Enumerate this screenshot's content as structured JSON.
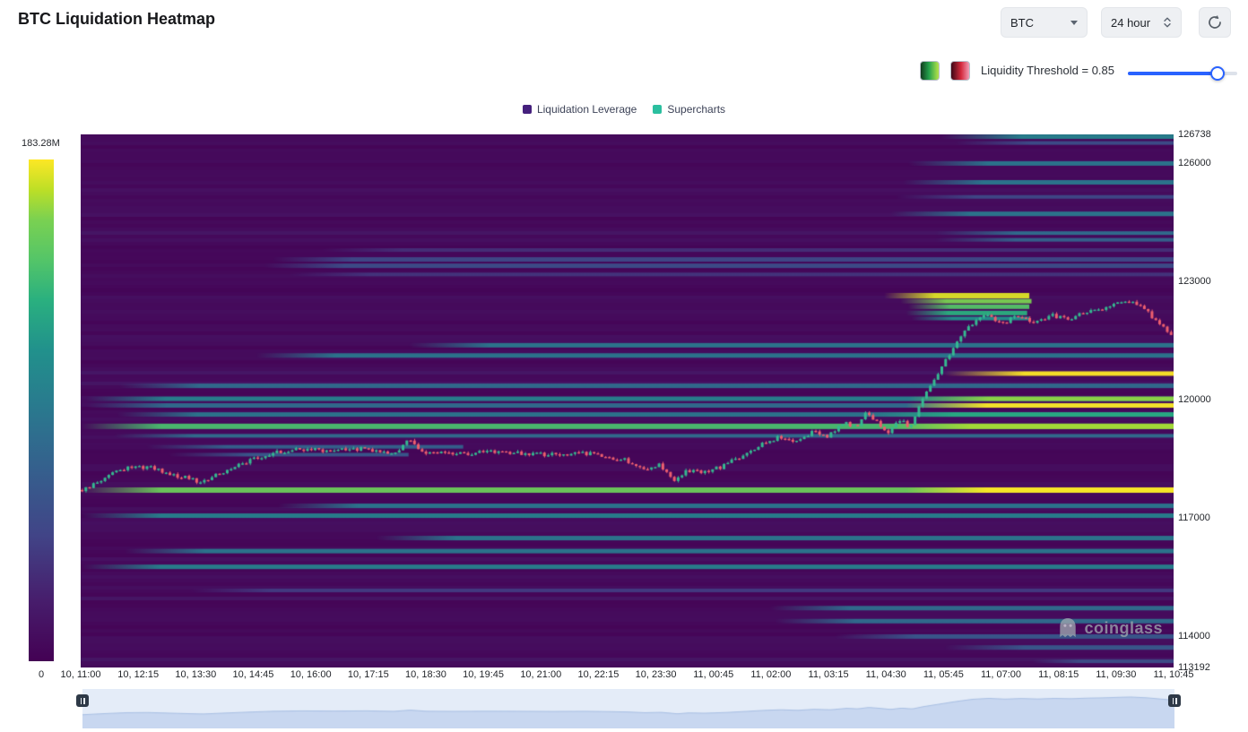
{
  "header": {
    "title": "BTC Liquidation Heatmap"
  },
  "controls": {
    "symbol_select": {
      "value": "BTC"
    },
    "interval_select": {
      "value": "24 hour"
    },
    "threshold_label": "Liquidity Threshold = 0.85",
    "threshold_value": 0.85,
    "slider_color": "#2962ff"
  },
  "legend": {
    "items": [
      {
        "label": "Liquidation Leverage",
        "color": "#45207d"
      },
      {
        "label": "Supercharts",
        "color": "#2bbf9f"
      }
    ]
  },
  "colorbar": {
    "max_label": "183.28M",
    "min_label": "0"
  },
  "watermark": {
    "text": "coinglass"
  },
  "y_axis": {
    "labels": [
      {
        "text": "126738",
        "price": 126738
      },
      {
        "text": "126000",
        "price": 126000
      },
      {
        "text": "123000",
        "price": 123000
      },
      {
        "text": "120000",
        "price": 120000
      },
      {
        "text": "117000",
        "price": 117000
      },
      {
        "text": "114000",
        "price": 114000
      },
      {
        "text": "113192",
        "price": 113192
      }
    ]
  },
  "x_axis": {
    "labels": [
      "10, 11:00",
      "10, 12:15",
      "10, 13:30",
      "10, 14:45",
      "10, 16:00",
      "10, 17:15",
      "10, 18:30",
      "10, 19:45",
      "10, 21:00",
      "10, 22:15",
      "10, 23:30",
      "11, 00:45",
      "11, 02:00",
      "11, 03:15",
      "11, 04:30",
      "11, 05:45",
      "11, 07:00",
      "11, 08:15",
      "11, 09:30",
      "11, 10:45"
    ],
    "first": "10, 11:00",
    "last": "11, 10:45"
  },
  "chart_data": {
    "type": "heatmap",
    "title": "BTC Liquidation Heatmap",
    "price_range": [
      113192,
      126738
    ],
    "time_range": [
      "10, 11:00",
      "11, 10:45"
    ],
    "colorbar_max_value": "183.28M",
    "colormap": "viridis",
    "colormap_stops": [
      [
        0,
        "#440154"
      ],
      [
        0.12,
        "#471d6c"
      ],
      [
        0.25,
        "#414487"
      ],
      [
        0.38,
        "#355f8d"
      ],
      [
        0.5,
        "#2a788e"
      ],
      [
        0.62,
        "#21918c"
      ],
      [
        0.72,
        "#2ab07f"
      ],
      [
        0.8,
        "#54c568"
      ],
      [
        0.88,
        "#7ad151"
      ],
      [
        0.94,
        "#bddf26"
      ],
      [
        1,
        "#fde725"
      ]
    ],
    "background_intensity": 0.02,
    "bands": [
      {
        "price": 126680,
        "start": 0.787,
        "end": 1,
        "intensity": 0.55,
        "thickness": 5
      },
      {
        "price": 126520,
        "start": 0.8,
        "end": 1,
        "intensity": 0.3,
        "thickness": 4
      },
      {
        "price": 126000,
        "start": 0.757,
        "end": 1,
        "intensity": 0.5,
        "thickness": 5
      },
      {
        "price": 125520,
        "start": 0.752,
        "end": 1,
        "intensity": 0.5,
        "thickness": 5
      },
      {
        "price": 125150,
        "start": 0.745,
        "end": 1,
        "intensity": 0.28,
        "thickness": 4
      },
      {
        "price": 124720,
        "start": 0.74,
        "end": 1,
        "intensity": 0.5,
        "thickness": 5
      },
      {
        "price": 124230,
        "start": 0.782,
        "end": 1,
        "intensity": 0.45,
        "thickness": 4
      },
      {
        "price": 124060,
        "start": 0.782,
        "end": 1,
        "intensity": 0.4,
        "thickness": 4
      },
      {
        "price": 123800,
        "start": 0.22,
        "end": 1,
        "intensity": 0.18,
        "thickness": 4
      },
      {
        "price": 123560,
        "start": 0.175,
        "end": 1,
        "intensity": 0.28,
        "thickness": 5
      },
      {
        "price": 123400,
        "start": 0.168,
        "end": 1,
        "intensity": 0.3,
        "thickness": 5
      },
      {
        "price": 123180,
        "start": 0.19,
        "end": 1,
        "intensity": 0.2,
        "thickness": 4
      },
      {
        "price": 122640,
        "start": 0.735,
        "end": 0.868,
        "intensity": 0.97,
        "thickness": 6
      },
      {
        "price": 122500,
        "start": 0.75,
        "end": 0.87,
        "intensity": 0.88,
        "thickness": 5
      },
      {
        "price": 122360,
        "start": 0.757,
        "end": 0.868,
        "intensity": 0.8,
        "thickness": 5
      },
      {
        "price": 122200,
        "start": 0.755,
        "end": 0.866,
        "intensity": 0.72,
        "thickness": 5
      },
      {
        "price": 122060,
        "start": 0.76,
        "end": 0.868,
        "intensity": 0.62,
        "thickness": 4
      },
      {
        "price": 121380,
        "start": 0.3,
        "end": 1,
        "intensity": 0.5,
        "thickness": 5
      },
      {
        "price": 121120,
        "start": 0.16,
        "end": 1,
        "intensity": 0.5,
        "thickness": 5
      },
      {
        "price": 120660,
        "start": 0.79,
        "end": 1,
        "intensity": 1.0,
        "thickness": 5
      },
      {
        "price": 120350,
        "start": 0.035,
        "end": 1,
        "intensity": 0.45,
        "thickness": 5
      },
      {
        "price": 120020,
        "start": 0.004,
        "end": 1,
        "intensity": 0.55,
        "thickness": 5
      },
      {
        "price": 120020,
        "start": 0.757,
        "end": 1,
        "intensity": 0.9,
        "thickness": 5
      },
      {
        "price": 119850,
        "start": 0.005,
        "end": 1,
        "intensity": 0.45,
        "thickness": 5
      },
      {
        "price": 119850,
        "start": 0.755,
        "end": 1,
        "intensity": 1.0,
        "thickness": 5
      },
      {
        "price": 119620,
        "start": 0.033,
        "end": 1,
        "intensity": 0.5,
        "thickness": 5
      },
      {
        "price": 119620,
        "start": 0.725,
        "end": 1,
        "intensity": 0.7,
        "thickness": 5
      },
      {
        "price": 119320,
        "start": 0.0,
        "end": 1,
        "intensity": 0.78,
        "thickness": 6
      },
      {
        "price": 119320,
        "start": 0.74,
        "end": 1,
        "intensity": 0.92,
        "thickness": 6
      },
      {
        "price": 119080,
        "start": 0.03,
        "end": 1,
        "intensity": 0.45,
        "thickness": 4
      },
      {
        "price": 118800,
        "start": 0.06,
        "end": 0.35,
        "intensity": 0.4,
        "thickness": 4
      },
      {
        "price": 118600,
        "start": 0.08,
        "end": 0.3,
        "intensity": 0.35,
        "thickness": 4
      },
      {
        "price": 117700,
        "start": 0.0,
        "end": 1,
        "intensity": 0.85,
        "thickness": 6
      },
      {
        "price": 117700,
        "start": 0.755,
        "end": 1,
        "intensity": 1.0,
        "thickness": 6
      },
      {
        "price": 117300,
        "start": 0.18,
        "end": 1,
        "intensity": 0.5,
        "thickness": 5
      },
      {
        "price": 117050,
        "start": 0.0,
        "end": 1,
        "intensity": 0.55,
        "thickness": 5
      },
      {
        "price": 116480,
        "start": 0.27,
        "end": 1,
        "intensity": 0.5,
        "thickness": 5
      },
      {
        "price": 116150,
        "start": 0.04,
        "end": 1,
        "intensity": 0.5,
        "thickness": 5
      },
      {
        "price": 115750,
        "start": 0.0,
        "end": 1,
        "intensity": 0.55,
        "thickness": 5
      },
      {
        "price": 115150,
        "start": 0.1,
        "end": 1,
        "intensity": 0.22,
        "thickness": 4
      },
      {
        "price": 114700,
        "start": 0.63,
        "end": 1,
        "intensity": 0.45,
        "thickness": 5
      },
      {
        "price": 114370,
        "start": 0.635,
        "end": 1,
        "intensity": 0.45,
        "thickness": 5
      },
      {
        "price": 113980,
        "start": 0.69,
        "end": 1,
        "intensity": 0.35,
        "thickness": 5
      },
      {
        "price": 113700,
        "start": 0.79,
        "end": 1,
        "intensity": 0.35,
        "thickness": 5
      },
      {
        "price": 113350,
        "start": 0.87,
        "end": 1,
        "intensity": 0.3,
        "thickness": 4
      }
    ],
    "price_line": {
      "type": "candlestick",
      "up_color": "#35b990",
      "down_color": "#ee5f6e",
      "waypoints": [
        [
          0.0,
          117700
        ],
        [
          0.02,
          118000
        ],
        [
          0.04,
          118250
        ],
        [
          0.06,
          118300
        ],
        [
          0.09,
          118050
        ],
        [
          0.11,
          117900
        ],
        [
          0.13,
          118150
        ],
        [
          0.155,
          118450
        ],
        [
          0.175,
          118650
        ],
        [
          0.2,
          118750
        ],
        [
          0.23,
          118700
        ],
        [
          0.26,
          118760
        ],
        [
          0.285,
          118620
        ],
        [
          0.3,
          118960
        ],
        [
          0.315,
          118650
        ],
        [
          0.34,
          118620
        ],
        [
          0.37,
          118660
        ],
        [
          0.4,
          118640
        ],
        [
          0.43,
          118600
        ],
        [
          0.46,
          118640
        ],
        [
          0.485,
          118540
        ],
        [
          0.5,
          118450
        ],
        [
          0.515,
          118250
        ],
        [
          0.53,
          118350
        ],
        [
          0.545,
          117950
        ],
        [
          0.555,
          118200
        ],
        [
          0.57,
          118120
        ],
        [
          0.59,
          118320
        ],
        [
          0.61,
          118650
        ],
        [
          0.625,
          118900
        ],
        [
          0.64,
          119050
        ],
        [
          0.655,
          118900
        ],
        [
          0.67,
          119180
        ],
        [
          0.685,
          119050
        ],
        [
          0.7,
          119450
        ],
        [
          0.71,
          119300
        ],
        [
          0.72,
          119680
        ],
        [
          0.73,
          119450
        ],
        [
          0.74,
          119150
        ],
        [
          0.75,
          119500
        ],
        [
          0.76,
          119280
        ],
        [
          0.77,
          119900
        ],
        [
          0.785,
          120600
        ],
        [
          0.8,
          121300
        ],
        [
          0.815,
          121900
        ],
        [
          0.83,
          122150
        ],
        [
          0.845,
          121950
        ],
        [
          0.86,
          122120
        ],
        [
          0.875,
          121980
        ],
        [
          0.89,
          122150
        ],
        [
          0.905,
          122050
        ],
        [
          0.92,
          122220
        ],
        [
          0.935,
          122300
        ],
        [
          0.95,
          122450
        ],
        [
          0.96,
          122520
        ],
        [
          0.975,
          122300
        ],
        [
          0.99,
          121900
        ],
        [
          1.0,
          121650
        ]
      ]
    },
    "navigator": {
      "range": [
        115200,
        123000
      ],
      "bg": "#e4ecf8",
      "fill": "#c8d7f0",
      "stroke": "#a9c0e4"
    }
  }
}
